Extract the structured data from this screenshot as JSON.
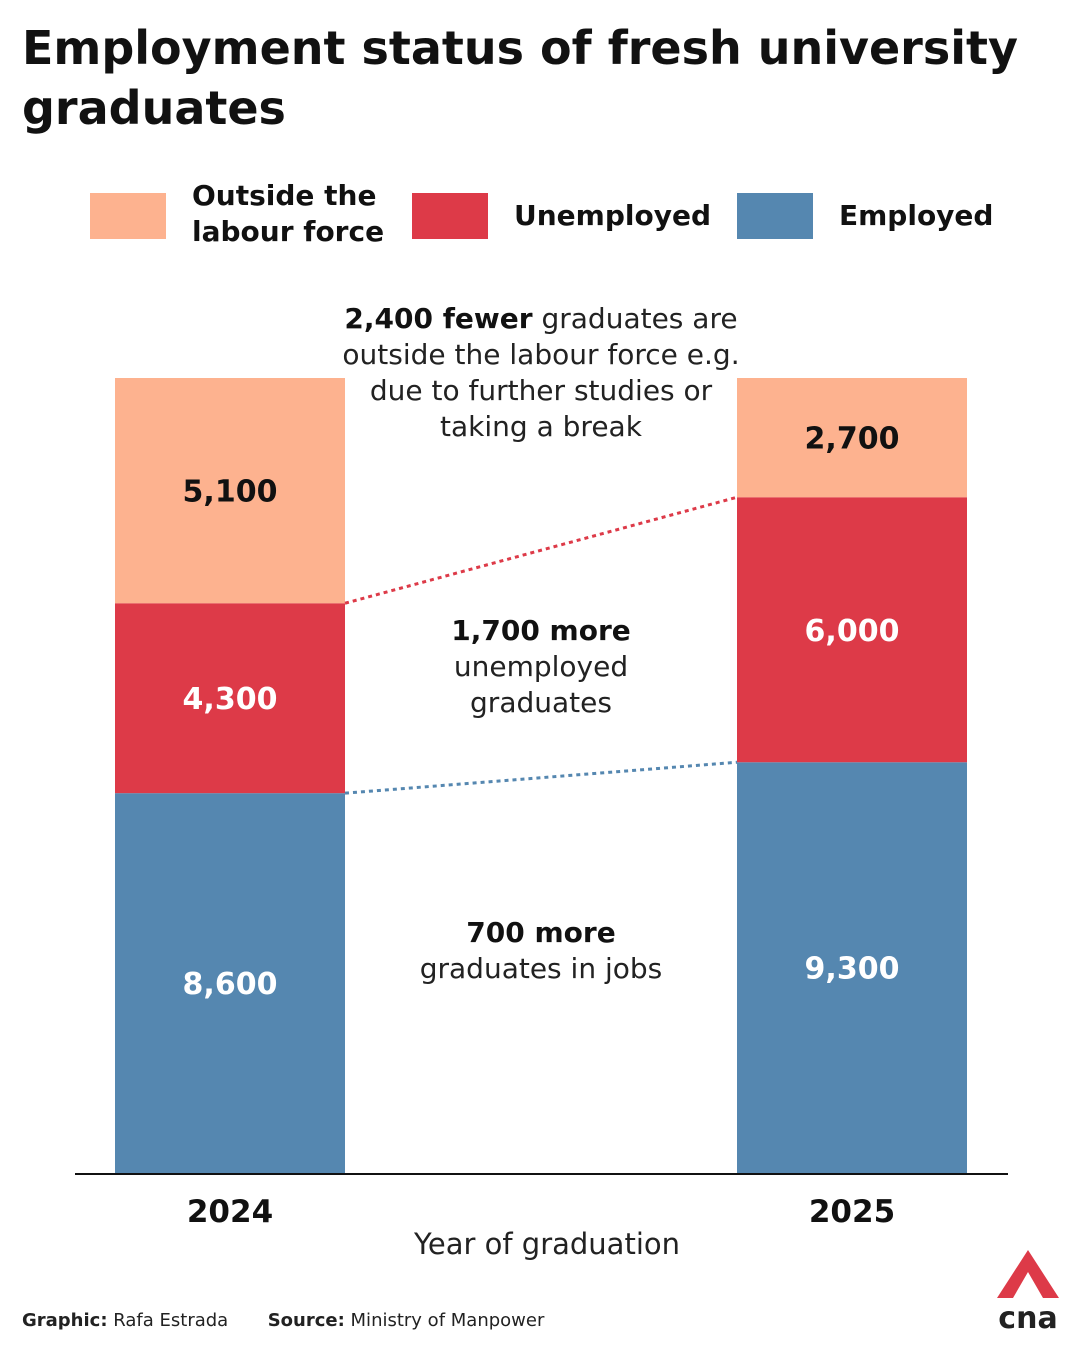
{
  "title": "Employment status of fresh university graduates",
  "legend": [
    {
      "label": "Outside the labour force",
      "color": "#fdb28f"
    },
    {
      "label": "Unemployed",
      "color": "#dd3a48"
    },
    {
      "label": "Employed",
      "color": "#5587b0"
    }
  ],
  "annotations": {
    "outside": {
      "bold": "2,400 fewer",
      "text": " graduates are outside the labour force e.g. due to further studies or taking a break"
    },
    "unemployed": {
      "bold": "1,700 more",
      "text": "unemployed graduates"
    },
    "employed": {
      "bold": "700 more",
      "text": "graduates in jobs"
    }
  },
  "chart_data": {
    "type": "bar",
    "stacked": true,
    "categories": [
      "2024",
      "2025"
    ],
    "series": [
      {
        "name": "Employed",
        "values": [
          8600,
          9300
        ],
        "color": "#5587b0",
        "label_color": "#ffffff"
      },
      {
        "name": "Unemployed",
        "values": [
          4300,
          6000
        ],
        "color": "#dd3a48",
        "label_color": "#ffffff"
      },
      {
        "name": "Outside the labour force",
        "values": [
          5100,
          2700
        ],
        "color": "#fdb28f",
        "label_color": "#111111"
      }
    ],
    "xlabel": "Year of graduation",
    "ylabel": "",
    "ylim": [
      0,
      18000
    ],
    "grid": false,
    "legend_position": "top",
    "connector_colors": {
      "Employed": "#5587b0",
      "Unemployed": "#dd3a48"
    }
  },
  "footer": {
    "graphic_label": "Graphic:",
    "graphic_value": "Rafa Estrada",
    "source_label": "Source:",
    "source_value": "Ministry of Manpower"
  },
  "logo": {
    "text": "cna",
    "color": "#dd3a48",
    "icon": "cna-logo-icon"
  }
}
